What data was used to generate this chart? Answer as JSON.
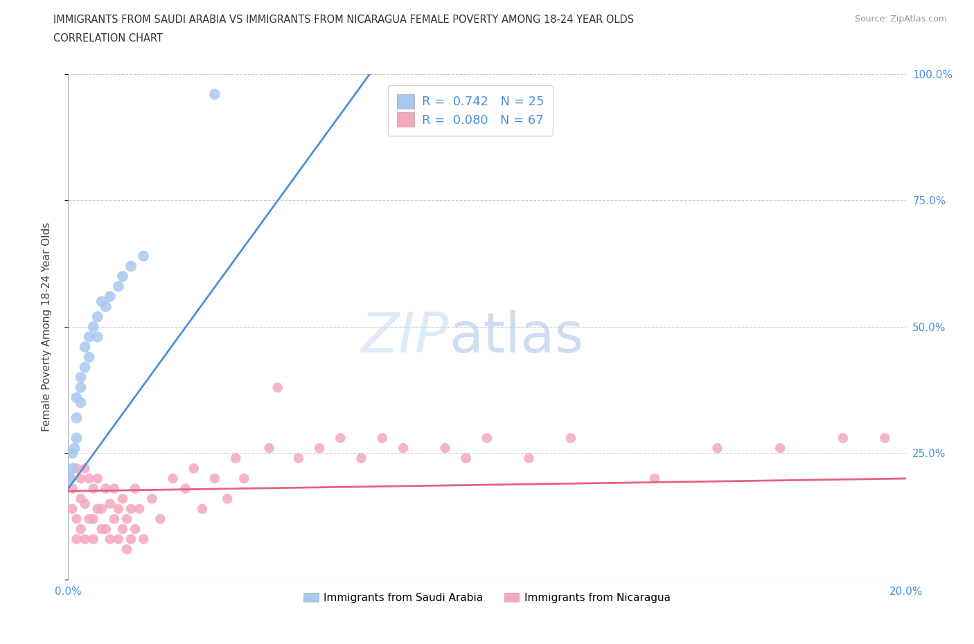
{
  "title_line1": "IMMIGRANTS FROM SAUDI ARABIA VS IMMIGRANTS FROM NICARAGUA FEMALE POVERTY AMONG 18-24 YEAR OLDS",
  "title_line2": "CORRELATION CHART",
  "source": "Source: ZipAtlas.com",
  "ylabel": "Female Poverty Among 18-24 Year Olds",
  "xlim": [
    0.0,
    0.2
  ],
  "ylim": [
    0.0,
    1.0
  ],
  "xticks": [
    0.0,
    0.05,
    0.1,
    0.15,
    0.2
  ],
  "xticklabels": [
    "0.0%",
    "",
    "",
    "",
    "20.0%"
  ],
  "yticks": [
    0.0,
    0.25,
    0.5,
    0.75,
    1.0
  ],
  "yright_labels": [
    "",
    "25.0%",
    "50.0%",
    "75.0%",
    "100.0%"
  ],
  "r_saudi": 0.742,
  "n_saudi": 25,
  "r_nicaragua": 0.08,
  "n_nicaragua": 67,
  "saudi_color": "#a8c8f0",
  "nicaragua_color": "#f5a8be",
  "saudi_line_color": "#4a90d9",
  "nicaragua_line_color": "#e8607a",
  "legend_saudi": "Immigrants from Saudi Arabia",
  "legend_nicaragua": "Immigrants from Nicaragua",
  "saudi_x": [
    0.0005,
    0.001,
    0.001,
    0.0015,
    0.002,
    0.002,
    0.002,
    0.003,
    0.003,
    0.003,
    0.004,
    0.004,
    0.005,
    0.005,
    0.006,
    0.007,
    0.007,
    0.008,
    0.009,
    0.01,
    0.012,
    0.013,
    0.015,
    0.018,
    0.035
  ],
  "saudi_y": [
    0.2,
    0.22,
    0.25,
    0.26,
    0.28,
    0.32,
    0.36,
    0.35,
    0.38,
    0.4,
    0.42,
    0.46,
    0.44,
    0.48,
    0.5,
    0.48,
    0.52,
    0.55,
    0.54,
    0.56,
    0.58,
    0.6,
    0.62,
    0.64,
    0.96
  ],
  "saudi_line_x0": 0.0,
  "saudi_line_y0": 0.18,
  "saudi_line_x1": 0.072,
  "saudi_line_y1": 1.0,
  "nicaragua_line_x0": 0.0,
  "nicaragua_line_y0": 0.175,
  "nicaragua_line_x1": 0.2,
  "nicaragua_line_y1": 0.2,
  "nicaragua_x": [
    0.0005,
    0.001,
    0.001,
    0.002,
    0.002,
    0.002,
    0.003,
    0.003,
    0.003,
    0.004,
    0.004,
    0.004,
    0.005,
    0.005,
    0.006,
    0.006,
    0.006,
    0.007,
    0.007,
    0.008,
    0.008,
    0.009,
    0.009,
    0.01,
    0.01,
    0.011,
    0.011,
    0.012,
    0.012,
    0.013,
    0.013,
    0.014,
    0.014,
    0.015,
    0.015,
    0.016,
    0.016,
    0.017,
    0.018,
    0.02,
    0.022,
    0.025,
    0.028,
    0.03,
    0.032,
    0.035,
    0.038,
    0.04,
    0.042,
    0.048,
    0.05,
    0.055,
    0.06,
    0.065,
    0.07,
    0.075,
    0.08,
    0.09,
    0.095,
    0.1,
    0.11,
    0.12,
    0.14,
    0.155,
    0.17,
    0.185,
    0.195
  ],
  "nicaragua_y": [
    0.2,
    0.18,
    0.14,
    0.22,
    0.12,
    0.08,
    0.2,
    0.16,
    0.1,
    0.22,
    0.15,
    0.08,
    0.2,
    0.12,
    0.18,
    0.12,
    0.08,
    0.2,
    0.14,
    0.14,
    0.1,
    0.18,
    0.1,
    0.15,
    0.08,
    0.18,
    0.12,
    0.14,
    0.08,
    0.16,
    0.1,
    0.12,
    0.06,
    0.14,
    0.08,
    0.18,
    0.1,
    0.14,
    0.08,
    0.16,
    0.12,
    0.2,
    0.18,
    0.22,
    0.14,
    0.2,
    0.16,
    0.24,
    0.2,
    0.26,
    0.38,
    0.24,
    0.26,
    0.28,
    0.24,
    0.28,
    0.26,
    0.26,
    0.24,
    0.28,
    0.24,
    0.28,
    0.2,
    0.26,
    0.26,
    0.28,
    0.28
  ]
}
